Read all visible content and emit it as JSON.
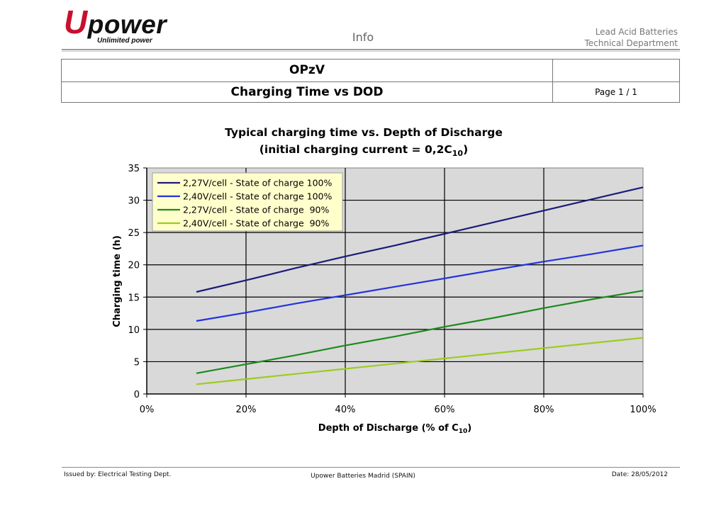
{
  "header": {
    "logo_initial": "U",
    "logo_rest": "power",
    "logo_tagline": "Unlimited power",
    "center_label": "Info",
    "right_line1": "Lead Acid Batteries",
    "right_line2": "Technical Department"
  },
  "title_table": {
    "model": "OPzV",
    "title": "Charging Time vs DOD",
    "page": "Page 1 / 1"
  },
  "chart_data": {
    "type": "line",
    "title_line1": "Typical charging time vs. Depth of Discharge",
    "title_line2_prefix": "(initial charging current = 0,2C",
    "title_line2_sub": "10",
    "title_line2_suffix": ")",
    "xlabel_prefix": "Depth of Discharge (% of C",
    "xlabel_sub": "10",
    "xlabel_suffix": ")",
    "ylabel": "Charging time (h)",
    "xlim": [
      0,
      100
    ],
    "ylim": [
      0,
      35
    ],
    "x_ticks": [
      "0%",
      "20%",
      "40%",
      "60%",
      "80%",
      "100%"
    ],
    "y_ticks": [
      "0",
      "5",
      "10",
      "15",
      "20",
      "25",
      "30",
      "35"
    ],
    "grid": true,
    "legend_position": "top-left",
    "series": [
      {
        "name": "2,27V/cell - State of charge 100%",
        "color": "#1b1b7a",
        "x": [
          10,
          20,
          30,
          40,
          50,
          60,
          70,
          80,
          90,
          100
        ],
        "y": [
          15.8,
          17.6,
          19.5,
          21.3,
          23.0,
          24.8,
          26.6,
          28.4,
          30.2,
          32.0
        ]
      },
      {
        "name": "2,40V/cell - State of charge 100%",
        "color": "#2233dd",
        "x": [
          10,
          20,
          30,
          40,
          50,
          60,
          70,
          80,
          90,
          100
        ],
        "y": [
          11.3,
          12.6,
          14.0,
          15.3,
          16.6,
          17.9,
          19.2,
          20.5,
          21.7,
          23.0
        ]
      },
      {
        "name": "2,27V/cell - State of charge  90%",
        "color": "#1e8a1e",
        "x": [
          10,
          20,
          30,
          40,
          50,
          60,
          70,
          80,
          90,
          100
        ],
        "y": [
          3.2,
          4.6,
          6.0,
          7.5,
          8.9,
          10.4,
          11.8,
          13.3,
          14.7,
          16.0
        ]
      },
      {
        "name": "2,40V/cell - State of charge  90%",
        "color": "#9ccc1f",
        "x": [
          10,
          20,
          30,
          40,
          50,
          60,
          70,
          80,
          90,
          100
        ],
        "y": [
          1.5,
          2.3,
          3.1,
          3.9,
          4.7,
          5.5,
          6.3,
          7.1,
          7.9,
          8.7
        ]
      }
    ]
  },
  "footer": {
    "issued_by": "Issued by:   Electrical Testing Dept.",
    "company": "Upower Batteries Madrid (SPAIN)",
    "date": "Date: 28/05/2012"
  }
}
